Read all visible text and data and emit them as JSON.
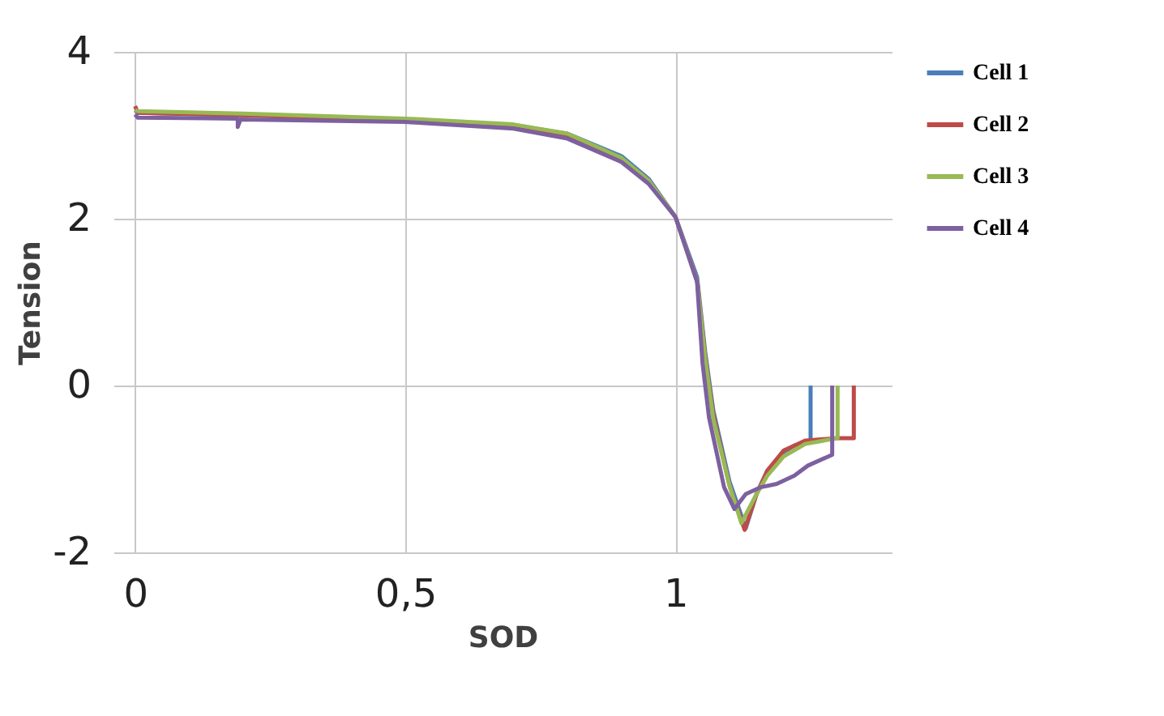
{
  "chart_data": {
    "type": "line",
    "xlabel": "SOD",
    "ylabel": "Tension",
    "xlim": [
      -0.04,
      1.4
    ],
    "xticks": [
      0,
      {
        "value": 0.5,
        "label": "0,5"
      },
      1
    ],
    "ylim": [
      -2,
      4
    ],
    "yticks": [
      -2,
      0,
      2,
      4
    ],
    "grid": true,
    "legend": "right",
    "line_style": "solid",
    "series": [
      {
        "name": "Cell 1",
        "color": "#4a7ebb",
        "x": [
          0,
          0.005,
          0.2,
          0.5,
          0.7,
          0.8,
          0.9,
          0.95,
          1.0,
          1.04,
          1.055,
          1.07,
          1.1,
          1.13,
          1.15,
          1.17,
          1.2,
          1.22,
          1.25,
          1.25
        ],
        "values": [
          3.3,
          3.27,
          3.24,
          3.19,
          3.12,
          3.02,
          2.75,
          2.48,
          2.02,
          1.3,
          0.4,
          -0.3,
          -1.15,
          -1.71,
          -1.3,
          -1.02,
          -0.8,
          -0.72,
          -0.68,
          0
        ]
      },
      {
        "name": "Cell 2",
        "color": "#be4b48",
        "x": [
          0,
          0.005,
          0.2,
          0.5,
          0.7,
          0.8,
          0.9,
          0.95,
          1.0,
          1.04,
          1.055,
          1.07,
          1.1,
          1.128,
          1.15,
          1.17,
          1.2,
          1.24,
          1.3,
          1.33,
          1.33
        ],
        "values": [
          3.35,
          3.27,
          3.24,
          3.18,
          3.11,
          3.0,
          2.72,
          2.46,
          2.02,
          1.26,
          0.35,
          -0.35,
          -1.2,
          -1.73,
          -1.3,
          -1.02,
          -0.78,
          -0.66,
          -0.63,
          -0.63,
          0
        ]
      },
      {
        "name": "Cell 3",
        "color": "#98b954",
        "x": [
          0,
          0.005,
          0.2,
          0.5,
          0.7,
          0.8,
          0.9,
          0.95,
          1.0,
          1.04,
          1.055,
          1.07,
          1.1,
          1.122,
          1.15,
          1.17,
          1.2,
          1.24,
          1.3,
          1.3
        ],
        "values": [
          3.3,
          3.29,
          3.26,
          3.2,
          3.13,
          3.02,
          2.73,
          2.46,
          2.02,
          1.25,
          0.32,
          -0.4,
          -1.2,
          -1.65,
          -1.3,
          -1.08,
          -0.85,
          -0.7,
          -0.63,
          0
        ]
      },
      {
        "name": "Cell 4",
        "color": "#7d60a0",
        "x": [
          0,
          0.005,
          0.19,
          0.19,
          0.195,
          0.5,
          0.7,
          0.8,
          0.9,
          0.95,
          1.0,
          1.04,
          1.05,
          1.062,
          1.09,
          1.109,
          1.13,
          1.157,
          1.187,
          1.22,
          1.245,
          1.29,
          1.29
        ],
        "values": [
          3.25,
          3.21,
          3.2,
          3.1,
          3.19,
          3.16,
          3.08,
          2.96,
          2.68,
          2.42,
          2.02,
          1.24,
          0.27,
          -0.38,
          -1.22,
          -1.48,
          -1.3,
          -1.22,
          -1.18,
          -1.08,
          -0.96,
          -0.83,
          0
        ]
      }
    ]
  }
}
